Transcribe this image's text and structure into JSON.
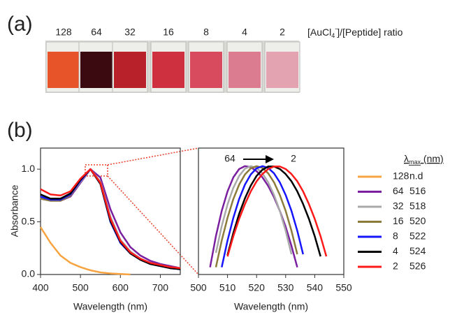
{
  "panel_a": {
    "label": "(a)",
    "ratios": [
      "128",
      "64",
      "32",
      "16",
      "8",
      "4",
      "2"
    ],
    "ratio_title_parts": [
      "[AuCl",
      "4",
      "-",
      "]/[Peptide] ratio"
    ],
    "vial_colors": [
      "#e8542a",
      "#3a0a10",
      "#b8202a",
      "#cf3040",
      "#d84b5e",
      "#dc7c90",
      "#e3a3b0"
    ]
  },
  "panel_b_label": "(b)",
  "legend": {
    "title_parts": [
      "λ",
      "max",
      " (nm)"
    ],
    "lambda_max": [
      "n.d",
      516,
      518,
      520,
      522,
      524,
      526
    ]
  },
  "chart_data": [
    {
      "type": "line",
      "y_label": "Absorbance",
      "x_label": "Wavelength (nm)",
      "xlim": [
        400,
        750
      ],
      "xticks": [
        400,
        500,
        600,
        700
      ],
      "ylim": [
        0,
        1.2
      ],
      "yticks": [
        {
          "value": 0,
          "label": "0.0"
        },
        {
          "value": 0.5,
          "label": "0.5"
        },
        {
          "value": 1,
          "label": "1.0"
        }
      ],
      "x": [
        400,
        425,
        450,
        475,
        500,
        525,
        550,
        575,
        600,
        625,
        650,
        675,
        700,
        725,
        750
      ],
      "series": [
        {
          "name": "128",
          "color": "#f7a440",
          "values": [
            0.45,
            0.3,
            0.18,
            0.11,
            0.07,
            0.04,
            0.02,
            0.01,
            0.005,
            0,
            null,
            null,
            null,
            null,
            null
          ]
        },
        {
          "name": "64",
          "color": "#7a1fa0",
          "values": [
            0.72,
            0.7,
            0.7,
            0.74,
            0.87,
            1.0,
            0.92,
            0.62,
            0.4,
            0.26,
            0.18,
            0.13,
            0.1,
            0.08,
            0.06
          ]
        },
        {
          "name": "32",
          "color": "#a9a9a9",
          "values": [
            0.73,
            0.7,
            0.7,
            0.75,
            0.88,
            1.0,
            0.88,
            0.55,
            0.33,
            0.22,
            0.15,
            0.11,
            0.09,
            0.07,
            0.06
          ]
        },
        {
          "name": "16",
          "color": "#8c7b3a",
          "values": [
            0.72,
            0.7,
            0.7,
            0.75,
            0.89,
            1.0,
            0.87,
            0.52,
            0.31,
            0.21,
            0.14,
            0.1,
            0.08,
            0.07,
            0.05
          ]
        },
        {
          "name": "8",
          "color": "#1515ff",
          "values": [
            0.74,
            0.71,
            0.71,
            0.76,
            0.89,
            1.0,
            0.86,
            0.5,
            0.3,
            0.2,
            0.14,
            0.1,
            0.08,
            0.06,
            0.05
          ]
        },
        {
          "name": "4",
          "color": "#000000",
          "values": [
            0.76,
            0.72,
            0.72,
            0.77,
            0.9,
            1.0,
            0.86,
            0.51,
            0.31,
            0.2,
            0.14,
            0.1,
            0.08,
            0.06,
            0.05
          ]
        },
        {
          "name": "2",
          "color": "#ff1a1a",
          "values": [
            0.81,
            0.76,
            0.75,
            0.79,
            0.91,
            1.0,
            0.87,
            0.53,
            0.32,
            0.21,
            0.15,
            0.11,
            0.09,
            0.07,
            0.06
          ]
        }
      ]
    },
    {
      "type": "line",
      "x_label": "Wavelength (nm)",
      "annotations": [
        "64",
        "2"
      ],
      "xlim": [
        500,
        550
      ],
      "xticks": [
        500,
        510,
        520,
        530,
        540,
        550
      ],
      "ylim": [
        0.7,
        1.05
      ],
      "x": [
        504,
        506,
        508,
        510,
        512,
        514,
        516,
        518,
        520,
        522,
        524,
        526,
        528,
        530,
        532,
        534,
        536,
        538,
        540,
        542,
        544,
        546
      ],
      "series": [
        {
          "color": "#7a1fa0",
          "values": [
            0.72,
            0.806,
            0.876,
            0.93,
            0.969,
            0.992,
            1.0,
            0.997,
            0.986,
            0.969,
            0.945,
            0.914,
            0.876,
            0.832,
            0.779,
            0.72,
            null,
            null,
            null,
            null,
            null,
            null
          ]
        },
        {
          "color": "#a9a9a9",
          "values": [
            null,
            0.76,
            0.834,
            0.894,
            0.94,
            0.973,
            0.993,
            1.0,
            0.995,
            0.98,
            0.955,
            0.92,
            0.876,
            0.821,
            0.756,
            null,
            null,
            null,
            null,
            null,
            null,
            null
          ]
        },
        {
          "color": "#8c7b3a",
          "values": [
            null,
            0.72,
            0.794,
            0.857,
            0.909,
            0.949,
            0.977,
            0.994,
            1.0,
            0.995,
            0.98,
            0.955,
            0.92,
            0.876,
            0.821,
            0.756,
            null,
            null,
            null,
            null,
            null,
            null
          ]
        },
        {
          "color": "#1515ff",
          "values": [
            null,
            null,
            0.72,
            0.794,
            0.857,
            0.909,
            0.949,
            0.977,
            0.994,
            1.0,
            0.995,
            0.98,
            0.955,
            0.92,
            0.876,
            0.821,
            0.756,
            null,
            null,
            null,
            null,
            null
          ]
        },
        {
          "color": "#000000",
          "values": [
            null,
            null,
            null,
            0.754,
            0.815,
            0.868,
            0.911,
            0.946,
            0.973,
            0.99,
            0.999,
            0.999,
            0.992,
            0.978,
            0.958,
            0.93,
            0.895,
            0.854,
            0.806,
            0.75,
            null,
            null
          ]
        },
        {
          "color": "#ff1a1a",
          "values": [
            null,
            null,
            null,
            0.75,
            0.806,
            0.854,
            0.895,
            0.93,
            0.958,
            0.978,
            0.992,
            0.999,
            0.999,
            0.992,
            0.978,
            0.958,
            0.93,
            0.895,
            0.854,
            0.806,
            0.75,
            null
          ]
        }
      ]
    }
  ]
}
